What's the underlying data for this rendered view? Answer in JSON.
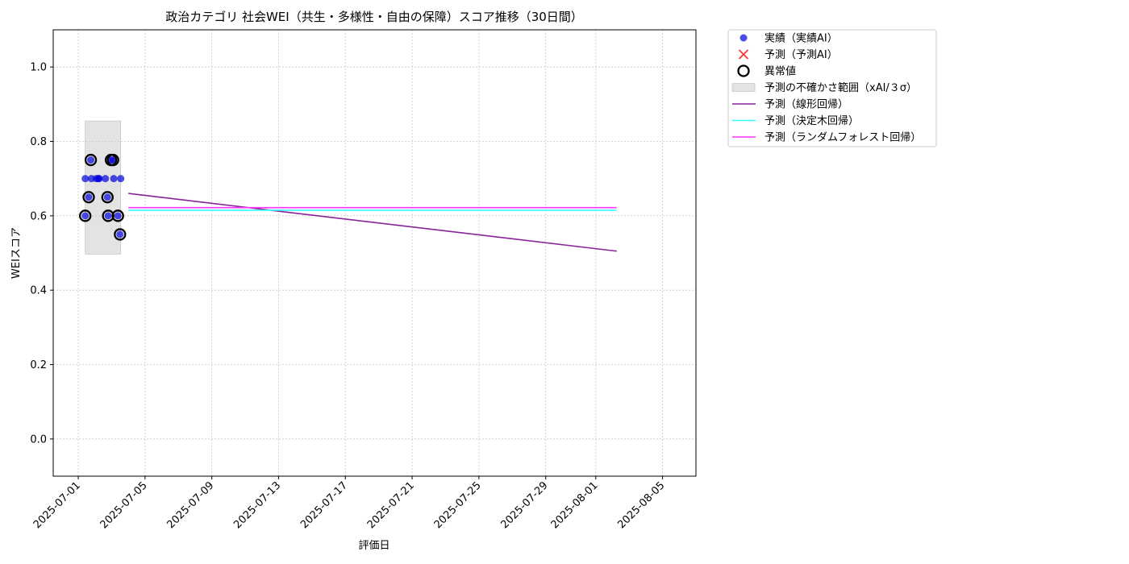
{
  "chart_data": {
    "type": "scatter",
    "title": "政治カテゴリ 社会WEI（共生・多様性・自由の保障）スコア推移（30日間）",
    "xlabel": "評価日",
    "ylabel": "WEIスコア",
    "x_ticks": [
      "2025-07-01",
      "2025-07-05",
      "2025-07-09",
      "2025-07-13",
      "2025-07-17",
      "2025-07-21",
      "2025-07-25",
      "2025-07-29",
      "2025-08-01",
      "2025-08-05"
    ],
    "xlim": [
      "2025-06-29T12:00",
      "2025-08-07T00:00"
    ],
    "ylim": [
      -0.1,
      1.1
    ],
    "y_ticks": [
      0.0,
      0.2,
      0.4,
      0.6,
      0.8,
      1.0
    ],
    "y_tick_labels": [
      "0.0",
      "0.2",
      "0.4",
      "0.6",
      "0.8",
      "1.0"
    ],
    "grid": true,
    "legend_position": "outside-top-right",
    "legend": [
      {
        "label": "実績（実績AI）",
        "kind": "marker-dot",
        "color": "#0000dd"
      },
      {
        "label": "予測（予測AI）",
        "kind": "marker-x",
        "color": "#ff3333"
      },
      {
        "label": "異常値",
        "kind": "marker-ring",
        "color": "#000000"
      },
      {
        "label": "予測の不確かさ範囲（xAI/３σ）",
        "kind": "patch",
        "color": "#cccccc"
      },
      {
        "label": "予測（線形回帰）",
        "kind": "line",
        "color": "#882299"
      },
      {
        "label": "予測（決定木回帰）",
        "kind": "line",
        "color": "#33ffff"
      },
      {
        "label": "予測（ランダムフォレスト回帰）",
        "kind": "line",
        "color": "#ff33ff"
      }
    ],
    "series": [
      {
        "name": "実績（実績AI）",
        "type": "scatter",
        "color": "#0000dd",
        "points": [
          {
            "x": "2025-07-01T10:00",
            "y": 0.7
          },
          {
            "x": "2025-07-01T10:00",
            "y": 0.6
          },
          {
            "x": "2025-07-01T15:00",
            "y": 0.65
          },
          {
            "x": "2025-07-01T18:00",
            "y": 0.75
          },
          {
            "x": "2025-07-01T19:00",
            "y": 0.7
          },
          {
            "x": "2025-07-02T02:00",
            "y": 0.7
          },
          {
            "x": "2025-07-02T05:00",
            "y": 0.7
          },
          {
            "x": "2025-07-02T06:00",
            "y": 0.7
          },
          {
            "x": "2025-07-02T15:00",
            "y": 0.7
          },
          {
            "x": "2025-07-02T18:00",
            "y": 0.65
          },
          {
            "x": "2025-07-02T19:00",
            "y": 0.6
          },
          {
            "x": "2025-07-02T23:00",
            "y": 0.75
          },
          {
            "x": "2025-07-03T02:00",
            "y": 0.75
          },
          {
            "x": "2025-07-03T03:00",
            "y": 0.7
          },
          {
            "x": "2025-07-03T09:00",
            "y": 0.6
          },
          {
            "x": "2025-07-03T12:00",
            "y": 0.55
          },
          {
            "x": "2025-07-03T13:00",
            "y": 0.7
          }
        ]
      },
      {
        "name": "異常値",
        "type": "scatter",
        "color": "#000000",
        "points": [
          {
            "x": "2025-07-01T10:00",
            "y": 0.6
          },
          {
            "x": "2025-07-01T15:00",
            "y": 0.65
          },
          {
            "x": "2025-07-01T18:00",
            "y": 0.75
          },
          {
            "x": "2025-07-02T18:00",
            "y": 0.65
          },
          {
            "x": "2025-07-02T19:00",
            "y": 0.6
          },
          {
            "x": "2025-07-02T23:00",
            "y": 0.75
          },
          {
            "x": "2025-07-03T02:00",
            "y": 0.75
          },
          {
            "x": "2025-07-03T09:00",
            "y": 0.6
          },
          {
            "x": "2025-07-03T12:00",
            "y": 0.55
          }
        ]
      },
      {
        "name": "予測の不確かさ範囲（xAI/３σ）",
        "type": "band",
        "color": "#cccccc",
        "x_range": [
          "2025-07-01T10:00",
          "2025-07-03T13:00"
        ],
        "y_range": [
          0.497,
          0.855
        ]
      },
      {
        "name": "予測（線形回帰）",
        "type": "line",
        "color": "#882299",
        "points": [
          {
            "x": "2025-07-04T00:00",
            "y": 0.66
          },
          {
            "x": "2025-08-02T06:00",
            "y": 0.505
          }
        ]
      },
      {
        "name": "予測（決定木回帰）",
        "type": "line",
        "color": "#33ffff",
        "points": [
          {
            "x": "2025-07-04T00:00",
            "y": 0.615
          },
          {
            "x": "2025-08-02T06:00",
            "y": 0.615
          }
        ]
      },
      {
        "name": "予測（ランダムフォレスト回帰）",
        "type": "line",
        "color": "#ff33ff",
        "points": [
          {
            "x": "2025-07-04T00:00",
            "y": 0.622
          },
          {
            "x": "2025-08-02T06:00",
            "y": 0.622
          }
        ]
      }
    ]
  }
}
